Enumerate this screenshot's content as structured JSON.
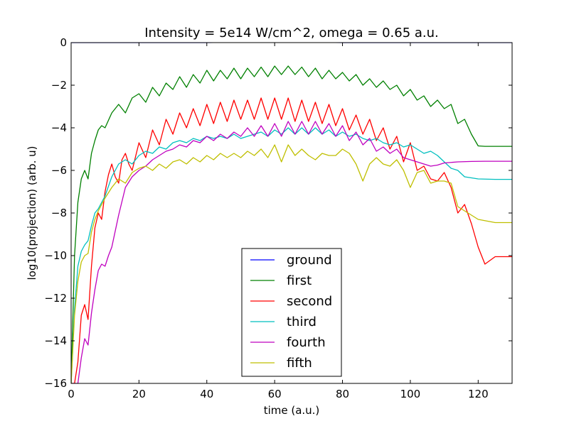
{
  "chart_data": {
    "type": "line",
    "title": "Intensity = 5e14 W/cm^2, omega = 0.65 a.u.",
    "xlabel": "time (a.u.)",
    "ylabel": "log10(projection) (arb. u)",
    "xlim": [
      0,
      130
    ],
    "ylim": [
      -16,
      0
    ],
    "xticks": [
      0,
      20,
      40,
      60,
      80,
      100,
      120
    ],
    "yticks": [
      0,
      -2,
      -4,
      -6,
      -8,
      -10,
      -12,
      -14,
      -16
    ],
    "grid": false,
    "legend_position": "bottom-center",
    "series": [
      {
        "name": "ground",
        "color": "#0000ff",
        "x": [
          0,
          20,
          40,
          50,
          55,
          60,
          65,
          70,
          80,
          100,
          130
        ],
        "y": [
          0,
          0,
          0,
          0.02,
          0.05,
          0.06,
          0.05,
          0.02,
          0,
          0,
          0
        ]
      },
      {
        "name": "first",
        "color": "#008000",
        "x": [
          0,
          1,
          2,
          3,
          4,
          5,
          6,
          7,
          8,
          9,
          10,
          12,
          14,
          16,
          18,
          20,
          22,
          24,
          26,
          28,
          30,
          32,
          34,
          36,
          38,
          40,
          42,
          44,
          46,
          48,
          50,
          52,
          54,
          56,
          58,
          60,
          62,
          64,
          66,
          68,
          70,
          72,
          74,
          76,
          78,
          80,
          82,
          84,
          86,
          88,
          90,
          92,
          94,
          96,
          98,
          100,
          102,
          104,
          106,
          108,
          110,
          112,
          114,
          116,
          118,
          120,
          122,
          125,
          130
        ],
        "y": [
          -16,
          -10,
          -7.5,
          -6.4,
          -6.0,
          -6.4,
          -5.2,
          -4.6,
          -4.1,
          -3.9,
          -4.0,
          -3.3,
          -2.9,
          -3.3,
          -2.6,
          -2.4,
          -2.8,
          -2.1,
          -2.5,
          -1.9,
          -2.2,
          -1.6,
          -2.1,
          -1.5,
          -1.9,
          -1.3,
          -1.8,
          -1.3,
          -1.7,
          -1.2,
          -1.7,
          -1.2,
          -1.6,
          -1.15,
          -1.6,
          -1.1,
          -1.5,
          -1.1,
          -1.5,
          -1.15,
          -1.6,
          -1.2,
          -1.7,
          -1.3,
          -1.7,
          -1.4,
          -1.8,
          -1.5,
          -2.0,
          -1.7,
          -2.1,
          -1.8,
          -2.2,
          -2.0,
          -2.5,
          -2.2,
          -2.7,
          -2.5,
          -3.0,
          -2.7,
          -3.1,
          -2.9,
          -3.8,
          -3.6,
          -4.3,
          -4.85,
          -4.87,
          -4.87,
          -4.87
        ]
      },
      {
        "name": "second",
        "color": "#ff0000",
        "x": [
          0,
          1,
          2,
          3,
          4,
          5,
          6,
          7,
          8,
          9,
          10,
          11,
          12,
          13,
          14,
          15,
          16,
          17,
          18,
          20,
          22,
          24,
          26,
          28,
          30,
          32,
          34,
          36,
          38,
          40,
          42,
          44,
          46,
          48,
          50,
          52,
          54,
          56,
          58,
          60,
          62,
          64,
          66,
          68,
          70,
          72,
          74,
          76,
          78,
          80,
          82,
          84,
          86,
          88,
          90,
          92,
          94,
          96,
          98,
          100,
          102,
          104,
          106,
          108,
          110,
          112,
          114,
          116,
          118,
          120,
          122,
          125,
          130
        ],
        "y": [
          -16,
          -16,
          -15,
          -12.8,
          -12.3,
          -13.0,
          -10.5,
          -8.7,
          -8.0,
          -8.3,
          -7.0,
          -6.2,
          -5.7,
          -6.3,
          -6.6,
          -5.5,
          -5.2,
          -5.7,
          -6.0,
          -4.7,
          -5.4,
          -4.1,
          -4.8,
          -3.6,
          -4.3,
          -3.3,
          -4.0,
          -3.1,
          -3.9,
          -2.9,
          -3.8,
          -2.8,
          -3.7,
          -2.7,
          -3.6,
          -2.7,
          -3.6,
          -2.6,
          -3.6,
          -2.6,
          -3.6,
          -2.6,
          -3.7,
          -2.7,
          -3.7,
          -2.8,
          -3.8,
          -2.9,
          -3.9,
          -3.1,
          -4.1,
          -3.4,
          -4.3,
          -3.6,
          -4.6,
          -4.0,
          -5.0,
          -4.4,
          -5.6,
          -4.7,
          -6.0,
          -5.8,
          -6.4,
          -6.5,
          -6.1,
          -6.8,
          -8.0,
          -7.6,
          -8.5,
          -9.6,
          -10.4,
          -10.05,
          -10.05
        ]
      },
      {
        "name": "third",
        "color": "#00bfbf",
        "x": [
          0,
          1,
          2,
          3,
          4,
          5,
          6,
          7,
          8,
          10,
          12,
          14,
          16,
          18,
          20,
          22,
          24,
          26,
          28,
          30,
          32,
          34,
          36,
          38,
          40,
          42,
          44,
          46,
          48,
          50,
          52,
          54,
          56,
          58,
          60,
          62,
          64,
          66,
          68,
          70,
          72,
          74,
          76,
          78,
          80,
          82,
          84,
          86,
          88,
          90,
          92,
          94,
          96,
          98,
          100,
          102,
          104,
          106,
          108,
          110,
          112,
          114,
          116,
          118,
          120,
          125,
          130
        ],
        "y": [
          -16,
          -12.5,
          -10.5,
          -9.8,
          -9.5,
          -9.3,
          -8.6,
          -8.0,
          -7.8,
          -7.2,
          -6.3,
          -5.7,
          -5.5,
          -5.7,
          -5.3,
          -5.1,
          -5.2,
          -4.9,
          -5.0,
          -4.7,
          -4.6,
          -4.7,
          -4.5,
          -4.6,
          -4.4,
          -4.5,
          -4.4,
          -4.5,
          -4.3,
          -4.5,
          -4.4,
          -4.3,
          -4.2,
          -4.4,
          -4.1,
          -4.3,
          -4.0,
          -4.3,
          -4.0,
          -4.3,
          -4.0,
          -4.3,
          -4.1,
          -4.4,
          -4.2,
          -4.4,
          -4.3,
          -4.5,
          -4.6,
          -4.5,
          -4.7,
          -4.8,
          -4.7,
          -4.9,
          -4.8,
          -5.0,
          -5.2,
          -5.1,
          -5.3,
          -5.6,
          -5.9,
          -6.0,
          -6.3,
          -6.35,
          -6.4,
          -6.42,
          -6.42
        ]
      },
      {
        "name": "fourth",
        "color": "#bf00bf",
        "x": [
          0,
          1,
          2,
          3,
          4,
          5,
          6,
          7,
          8,
          9,
          10,
          11,
          12,
          14,
          16,
          18,
          20,
          22,
          24,
          26,
          28,
          30,
          32,
          34,
          36,
          38,
          40,
          42,
          44,
          46,
          48,
          50,
          52,
          54,
          56,
          58,
          60,
          62,
          64,
          66,
          68,
          70,
          72,
          74,
          76,
          78,
          80,
          82,
          84,
          86,
          88,
          90,
          92,
          94,
          96,
          98,
          100,
          102,
          104,
          106,
          108,
          110,
          114,
          118,
          122,
          126,
          130
        ],
        "y": [
          -16,
          -16,
          -16,
          -14.8,
          -13.9,
          -14.2,
          -12.7,
          -11.6,
          -10.7,
          -10.4,
          -10.5,
          -10.0,
          -9.6,
          -8.1,
          -6.8,
          -6.3,
          -6.0,
          -5.8,
          -5.5,
          -5.3,
          -5.1,
          -5.0,
          -4.8,
          -4.9,
          -4.6,
          -4.7,
          -4.4,
          -4.6,
          -4.3,
          -4.5,
          -4.2,
          -4.4,
          -4.0,
          -4.4,
          -3.9,
          -4.4,
          -3.8,
          -4.4,
          -3.7,
          -4.3,
          -3.7,
          -4.3,
          -3.7,
          -4.3,
          -3.8,
          -4.4,
          -3.9,
          -4.6,
          -4.2,
          -4.8,
          -4.5,
          -5.1,
          -4.9,
          -5.2,
          -5.0,
          -5.4,
          -5.5,
          -5.6,
          -5.7,
          -5.8,
          -5.75,
          -5.65,
          -5.6,
          -5.58,
          -5.57,
          -5.57,
          -5.57
        ]
      },
      {
        "name": "fifth",
        "color": "#bfbf00",
        "x": [
          0,
          1,
          2,
          3,
          4,
          5,
          6,
          7,
          8,
          10,
          12,
          14,
          16,
          18,
          20,
          22,
          24,
          26,
          28,
          30,
          32,
          34,
          36,
          38,
          40,
          42,
          44,
          46,
          48,
          50,
          52,
          54,
          56,
          58,
          60,
          62,
          64,
          66,
          68,
          70,
          72,
          74,
          76,
          78,
          80,
          82,
          84,
          86,
          88,
          90,
          92,
          94,
          96,
          98,
          100,
          102,
          104,
          106,
          108,
          110,
          112,
          114,
          116,
          118,
          120,
          125,
          130
        ],
        "y": [
          -16,
          -12.8,
          -11.2,
          -10.3,
          -10.0,
          -9.9,
          -8.9,
          -8.3,
          -7.9,
          -7.3,
          -6.8,
          -6.4,
          -6.6,
          -6.1,
          -5.9,
          -5.8,
          -6.0,
          -5.7,
          -5.9,
          -5.6,
          -5.5,
          -5.7,
          -5.4,
          -5.6,
          -5.3,
          -5.5,
          -5.2,
          -5.4,
          -5.2,
          -5.4,
          -5.1,
          -5.3,
          -5.0,
          -5.4,
          -4.8,
          -5.6,
          -4.8,
          -5.3,
          -5.0,
          -5.3,
          -5.5,
          -5.2,
          -5.3,
          -5.3,
          -5.0,
          -5.2,
          -5.7,
          -6.5,
          -5.7,
          -5.4,
          -5.7,
          -5.8,
          -5.5,
          -6.0,
          -6.8,
          -6.1,
          -6.0,
          -6.6,
          -6.5,
          -6.5,
          -6.6,
          -7.7,
          -7.9,
          -8.1,
          -8.3,
          -8.45,
          -8.45
        ]
      }
    ]
  }
}
